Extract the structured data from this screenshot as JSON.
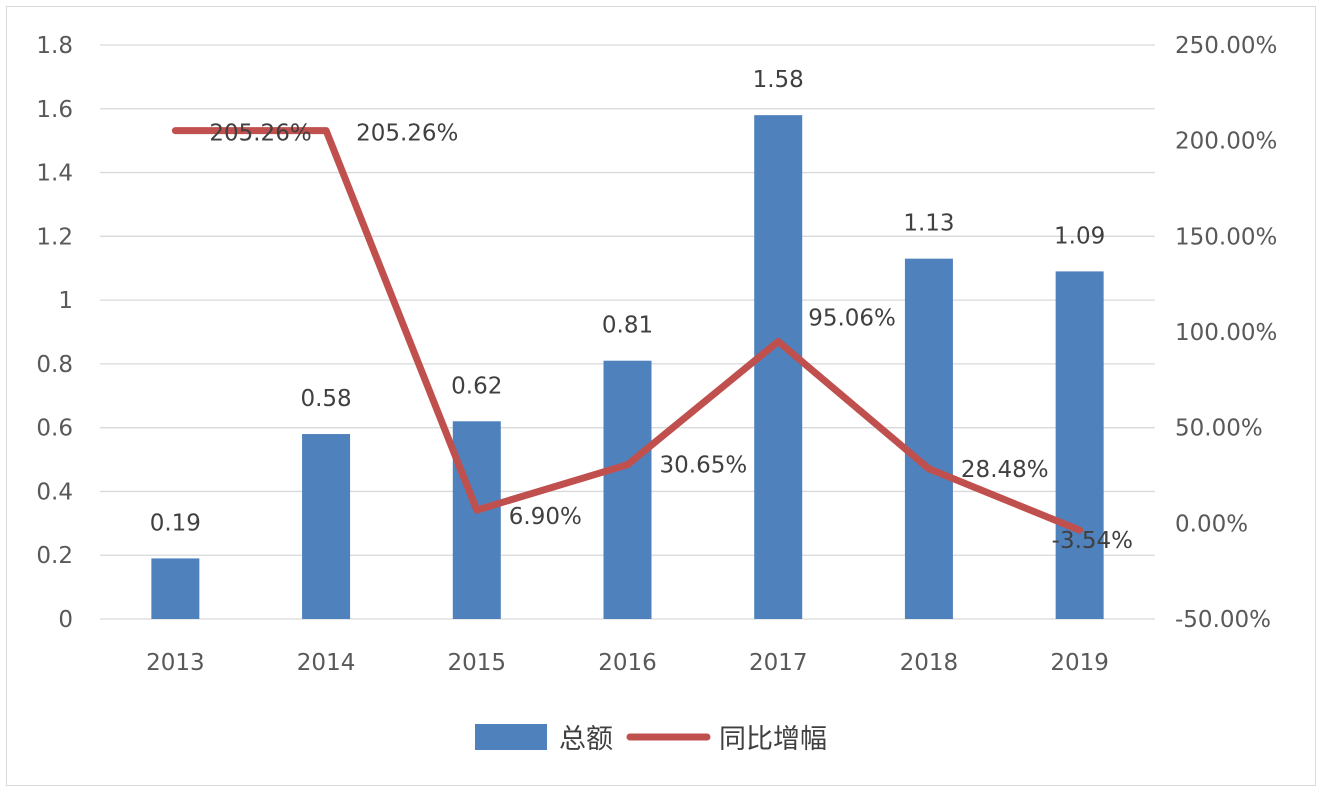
{
  "chart_data": {
    "type": "bar",
    "categories": [
      "2013",
      "2014",
      "2015",
      "2016",
      "2017",
      "2018",
      "2019"
    ],
    "series": [
      {
        "name": "总额",
        "type": "bar",
        "axis": "left",
        "color": "#4f81bd",
        "values": [
          0.19,
          0.58,
          0.62,
          0.81,
          1.58,
          1.13,
          1.09
        ],
        "labels": [
          "0.19",
          "0.58",
          "0.62",
          "0.81",
          "1.58",
          "1.13",
          "1.09"
        ]
      },
      {
        "name": "同比增幅",
        "type": "line",
        "axis": "right",
        "color": "#c0504d",
        "values": [
          205.26,
          205.26,
          6.9,
          30.65,
          95.06,
          28.48,
          -3.54
        ],
        "labels": [
          "205.26%",
          "205.26%",
          "6.90%",
          "30.65%",
          "95.06%",
          "28.48%",
          "-3.54%"
        ]
      }
    ],
    "y_left": {
      "range": [
        0,
        1.8
      ],
      "ticks": [
        0,
        0.2,
        0.4,
        0.6,
        0.8,
        1,
        1.2,
        1.4,
        1.6,
        1.8
      ],
      "tick_labels": [
        "0",
        "0.2",
        "0.4",
        "0.6",
        "0.8",
        "1",
        "1.2",
        "1.4",
        "1.6",
        "1.8"
      ]
    },
    "y_right": {
      "range": [
        -50,
        250
      ],
      "ticks": [
        -50,
        0,
        50,
        100,
        150,
        200,
        250
      ],
      "tick_labels": [
        "-50.00%",
        "0.00%",
        "50.00%",
        "100.00%",
        "150.00%",
        "200.00%",
        "250.00%"
      ]
    },
    "grid": true,
    "legend": "bottom-center"
  }
}
